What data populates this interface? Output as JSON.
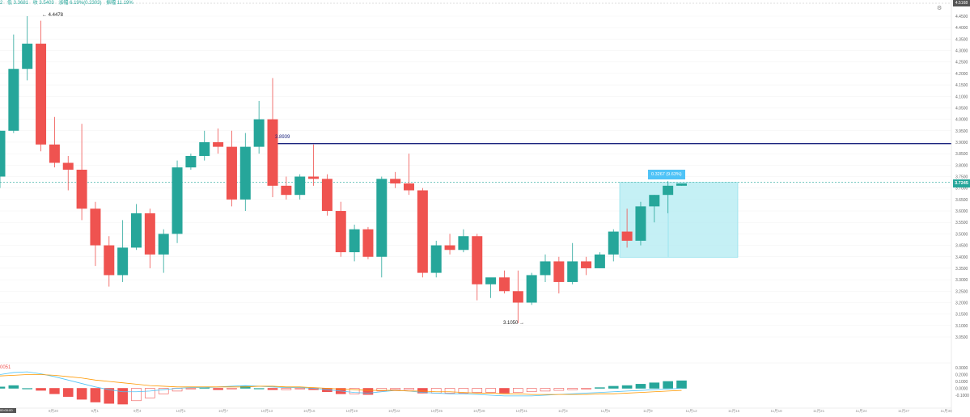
{
  "header": {
    "ohlc": [
      "2",
      "低 3.3681",
      "收 3.5403",
      "涨幅 6.19%(0.2303)",
      "振幅 11.19%"
    ]
  },
  "price_axis": {
    "labels": [
      "4.4500",
      "4.4000",
      "4.3500",
      "4.3000",
      "4.2500",
      "4.2000",
      "4.1500",
      "4.1000",
      "4.0500",
      "4.0000",
      "3.9500",
      "3.9000",
      "3.8500",
      "3.8000",
      "3.7500",
      "3.7000",
      "3.6500",
      "3.6000",
      "3.5500",
      "3.5000",
      "3.4500",
      "3.4000",
      "3.3500",
      "3.3000",
      "3.2500",
      "3.2000",
      "3.1500",
      "3.1000",
      "3.0500"
    ],
    "top_tag": "4.5168",
    "last_price": "3.7245"
  },
  "macd_axis": {
    "labels": [
      "0.3000",
      "0.2000",
      "0.1000",
      "0.0000",
      "-0.1000"
    ],
    "indicator_label": "0051"
  },
  "time_axis": {
    "labels": [
      "8月20",
      "9月1",
      "9月4",
      "10月1",
      "10月7",
      "10月13",
      "10月16",
      "10月19",
      "10月22",
      "10月25",
      "10月28",
      "10月31",
      "11月3",
      "11月6",
      "11月9",
      "11月12",
      "11月15",
      "11月18",
      "11月21",
      "11月24",
      "11月27",
      "11月30"
    ]
  },
  "annotations": {
    "high": "4.4478",
    "low": "3.1050",
    "level": "3.8939",
    "measure": "0.3267 (9.63%)",
    "bottom_left": "00:00:00"
  },
  "colors": {
    "up": "#26a69a",
    "down": "#ef5350",
    "level_line": "#1a237e",
    "measure_box": "#b2ebf2",
    "macd_line": "#4fc3f7",
    "signal_line": "#ff9800"
  },
  "chart_data": {
    "type": "candlestick",
    "ylim": [
      3.05,
      4.45
    ],
    "candles": [
      {
        "o": 3.75,
        "h": 3.95,
        "l": 3.7,
        "c": 3.95
      },
      {
        "o": 3.95,
        "h": 4.37,
        "l": 3.94,
        "c": 4.22
      },
      {
        "o": 4.22,
        "h": 4.45,
        "l": 4.17,
        "c": 4.33
      },
      {
        "o": 4.33,
        "h": 4.43,
        "l": 3.86,
        "c": 3.89
      },
      {
        "o": 3.89,
        "h": 4.01,
        "l": 3.79,
        "c": 3.81
      },
      {
        "o": 3.81,
        "h": 3.84,
        "l": 3.69,
        "c": 3.78
      },
      {
        "o": 3.78,
        "h": 3.98,
        "l": 3.56,
        "c": 3.61
      },
      {
        "o": 3.61,
        "h": 3.64,
        "l": 3.36,
        "c": 3.45
      },
      {
        "o": 3.45,
        "h": 3.49,
        "l": 3.27,
        "c": 3.32
      },
      {
        "o": 3.32,
        "h": 3.56,
        "l": 3.29,
        "c": 3.44
      },
      {
        "o": 3.44,
        "h": 3.63,
        "l": 3.43,
        "c": 3.59
      },
      {
        "o": 3.59,
        "h": 3.61,
        "l": 3.35,
        "c": 3.41
      },
      {
        "o": 3.41,
        "h": 3.52,
        "l": 3.33,
        "c": 3.5
      },
      {
        "o": 3.5,
        "h": 3.82,
        "l": 3.46,
        "c": 3.79
      },
      {
        "o": 3.79,
        "h": 3.85,
        "l": 3.78,
        "c": 3.84
      },
      {
        "o": 3.84,
        "h": 3.95,
        "l": 3.82,
        "c": 3.9
      },
      {
        "o": 3.9,
        "h": 3.96,
        "l": 3.85,
        "c": 3.88
      },
      {
        "o": 3.88,
        "h": 3.95,
        "l": 3.62,
        "c": 3.65
      },
      {
        "o": 3.65,
        "h": 3.94,
        "l": 3.6,
        "c": 3.88
      },
      {
        "o": 3.88,
        "h": 4.08,
        "l": 3.85,
        "c": 4.0
      },
      {
        "o": 4.0,
        "h": 4.18,
        "l": 3.66,
        "c": 3.71
      },
      {
        "o": 3.71,
        "h": 3.75,
        "l": 3.65,
        "c": 3.67
      },
      {
        "o": 3.67,
        "h": 3.76,
        "l": 3.65,
        "c": 3.75
      },
      {
        "o": 3.75,
        "h": 3.89,
        "l": 3.71,
        "c": 3.74
      },
      {
        "o": 3.74,
        "h": 3.76,
        "l": 3.58,
        "c": 3.6
      },
      {
        "o": 3.6,
        "h": 3.64,
        "l": 3.4,
        "c": 3.42
      },
      {
        "o": 3.42,
        "h": 3.54,
        "l": 3.38,
        "c": 3.52
      },
      {
        "o": 3.52,
        "h": 3.53,
        "l": 3.39,
        "c": 3.4
      },
      {
        "o": 3.4,
        "h": 3.75,
        "l": 3.31,
        "c": 3.74
      },
      {
        "o": 3.74,
        "h": 3.77,
        "l": 3.7,
        "c": 3.72
      },
      {
        "o": 3.72,
        "h": 3.85,
        "l": 3.67,
        "c": 3.69
      },
      {
        "o": 3.69,
        "h": 3.7,
        "l": 3.31,
        "c": 3.33
      },
      {
        "o": 3.33,
        "h": 3.47,
        "l": 3.31,
        "c": 3.45
      },
      {
        "o": 3.45,
        "h": 3.5,
        "l": 3.41,
        "c": 3.43
      },
      {
        "o": 3.43,
        "h": 3.52,
        "l": 3.42,
        "c": 3.49
      },
      {
        "o": 3.49,
        "h": 3.5,
        "l": 3.21,
        "c": 3.28
      },
      {
        "o": 3.28,
        "h": 3.3,
        "l": 3.22,
        "c": 3.31
      },
      {
        "o": 3.31,
        "h": 3.34,
        "l": 3.24,
        "c": 3.25
      },
      {
        "o": 3.25,
        "h": 3.34,
        "l": 3.11,
        "c": 3.2
      },
      {
        "o": 3.2,
        "h": 3.33,
        "l": 3.19,
        "c": 3.32
      },
      {
        "o": 3.32,
        "h": 3.41,
        "l": 3.29,
        "c": 3.38
      },
      {
        "o": 3.38,
        "h": 3.4,
        "l": 3.24,
        "c": 3.29
      },
      {
        "o": 3.29,
        "h": 3.46,
        "l": 3.28,
        "c": 3.38
      },
      {
        "o": 3.38,
        "h": 3.4,
        "l": 3.32,
        "c": 3.35
      },
      {
        "o": 3.35,
        "h": 3.42,
        "l": 3.35,
        "c": 3.41
      },
      {
        "o": 3.41,
        "h": 3.52,
        "l": 3.38,
        "c": 3.51
      },
      {
        "o": 3.51,
        "h": 3.61,
        "l": 3.44,
        "c": 3.47
      },
      {
        "o": 3.47,
        "h": 3.64,
        "l": 3.45,
        "c": 3.62
      },
      {
        "o": 3.62,
        "h": 3.67,
        "l": 3.55,
        "c": 3.67
      },
      {
        "o": 3.67,
        "h": 3.73,
        "l": 3.59,
        "c": 3.71
      },
      {
        "o": 3.71,
        "h": 3.72,
        "l": 3.71,
        "c": 3.72
      }
    ],
    "horizontal_line": 3.8939,
    "measure_range": [
      3.3978,
      3.7245
    ],
    "macd": {
      "ylim": [
        -0.15,
        0.35
      ],
      "histogram": [
        0.02,
        0.04,
        0.0,
        -0.03,
        -0.08,
        -0.12,
        -0.16,
        -0.2,
        -0.22,
        -0.23,
        -0.18,
        -0.14,
        -0.08,
        -0.04,
        -0.01,
        0.01,
        -0.02,
        -0.01,
        0.03,
        0.0,
        -0.02,
        -0.02,
        -0.01,
        -0.02,
        -0.05,
        -0.08,
        -0.08,
        -0.09,
        -0.04,
        -0.02,
        -0.02,
        -0.07,
        -0.07,
        -0.07,
        -0.07,
        -0.06,
        -0.06,
        -0.07,
        -0.06,
        -0.05,
        -0.04,
        -0.03,
        -0.02,
        -0.01,
        0.01,
        0.03,
        0.04,
        0.06,
        0.08,
        0.1,
        0.11
      ],
      "macd_line": [
        0.2,
        0.23,
        0.24,
        0.21,
        0.17,
        0.12,
        0.07,
        0.02,
        -0.02,
        -0.05,
        -0.05,
        -0.04,
        -0.02,
        0.0,
        0.01,
        0.01,
        0.02,
        0.03,
        0.04,
        0.03,
        0.02,
        0.01,
        0.01,
        0.0,
        -0.02,
        -0.04,
        -0.06,
        -0.07,
        -0.05,
        -0.03,
        -0.04,
        -0.06,
        -0.07,
        -0.08,
        -0.08,
        -0.09,
        -0.1,
        -0.11,
        -0.11,
        -0.11,
        -0.1,
        -0.09,
        -0.08,
        -0.07,
        -0.06,
        -0.05,
        -0.04,
        -0.03,
        -0.02,
        -0.01,
        0.0
      ],
      "signal_line": [
        0.18,
        0.19,
        0.2,
        0.2,
        0.19,
        0.17,
        0.15,
        0.12,
        0.1,
        0.08,
        0.06,
        0.04,
        0.03,
        0.02,
        0.02,
        0.02,
        0.02,
        0.02,
        0.02,
        0.03,
        0.03,
        0.02,
        0.02,
        0.01,
        0.0,
        -0.01,
        -0.02,
        -0.03,
        -0.03,
        -0.03,
        -0.04,
        -0.04,
        -0.05,
        -0.05,
        -0.06,
        -0.07,
        -0.07,
        -0.08,
        -0.08,
        -0.09,
        -0.09,
        -0.09,
        -0.09,
        -0.09,
        -0.08,
        -0.08,
        -0.07,
        -0.06,
        -0.05,
        -0.04,
        -0.03
      ]
    }
  }
}
